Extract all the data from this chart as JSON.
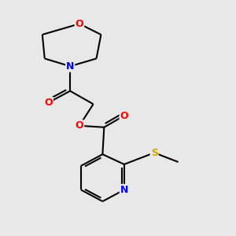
{
  "bg_color": "#e8e8e8",
  "bond_color": "#000000",
  "atom_colors": {
    "O": "#ff0000",
    "N": "#0000ff",
    "S": "#ccaa00",
    "C": "#000000"
  },
  "bond_width": 1.5,
  "figsize": [
    3.0,
    3.0
  ],
  "dpi": 100,
  "xlim": [
    0,
    10
  ],
  "ylim": [
    0,
    10
  ]
}
